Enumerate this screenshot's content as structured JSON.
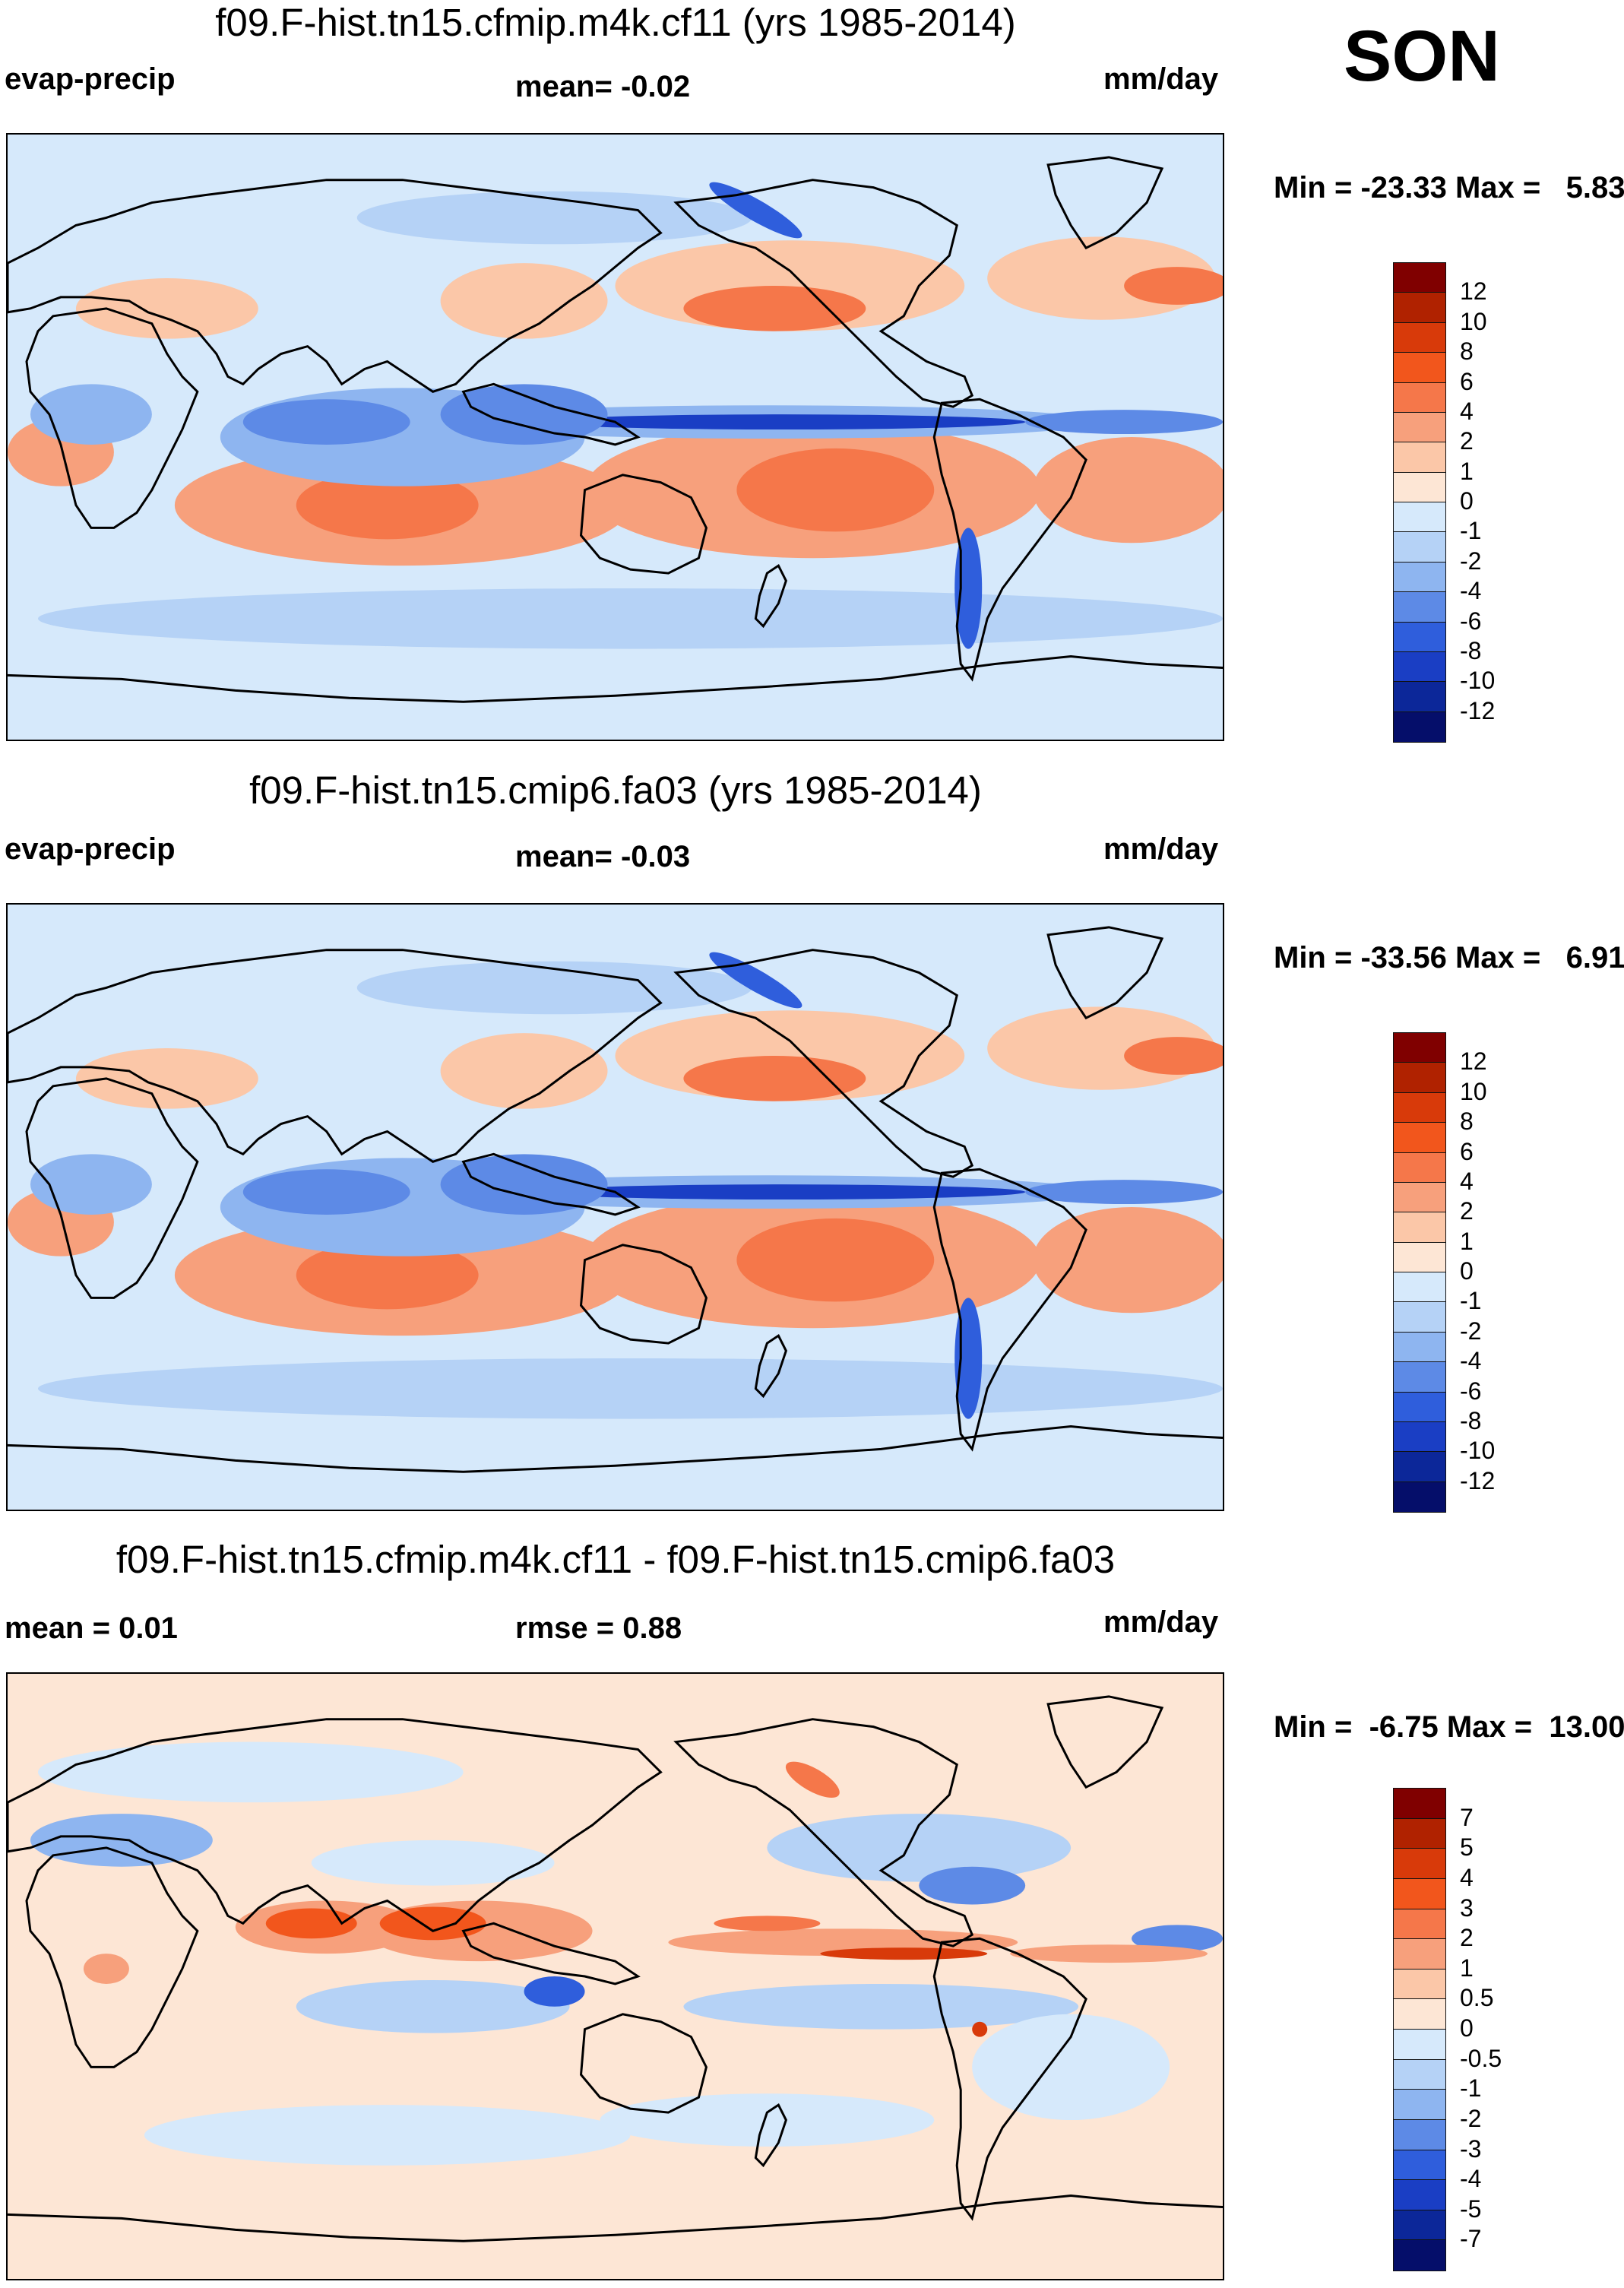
{
  "season": "SON",
  "panels": [
    {
      "title": "f09.F-hist.tn15.cfmip.m4k.cf11 (yrs 1985-2014)",
      "left_label": "evap-precip",
      "center_label": "mean=  -0.02",
      "right_label": "mm/day",
      "minmax": "Min = -23.33 Max =   5.83",
      "colorbar": {
        "labels": [
          "12",
          "10",
          "8",
          "6",
          "4",
          "2",
          "1",
          "0",
          "-1",
          "-2",
          "-4",
          "-6",
          "-8",
          "-10",
          "-12"
        ],
        "colors": [
          "#800000",
          "#b02200",
          "#d83a0a",
          "#f2561c",
          "#f5774a",
          "#f7a07c",
          "#fbc7a8",
          "#fde6d5",
          "#d6e9fb",
          "#b5d2f6",
          "#8eb5f0",
          "#5d8ae6",
          "#2f5edc",
          "#1a3ec4",
          "#0c2799",
          "#050e6a"
        ]
      },
      "map_type": "absolute"
    },
    {
      "title": "f09.F-hist.tn15.cmip6.fa03 (yrs 1985-2014)",
      "left_label": "evap-precip",
      "center_label": "mean=  -0.03",
      "right_label": "mm/day",
      "minmax": "Min = -33.56 Max =   6.91",
      "colorbar": {
        "labels": [
          "12",
          "10",
          "8",
          "6",
          "4",
          "2",
          "1",
          "0",
          "-1",
          "-2",
          "-4",
          "-6",
          "-8",
          "-10",
          "-12"
        ],
        "colors": [
          "#800000",
          "#b02200",
          "#d83a0a",
          "#f2561c",
          "#f5774a",
          "#f7a07c",
          "#fbc7a8",
          "#fde6d5",
          "#d6e9fb",
          "#b5d2f6",
          "#8eb5f0",
          "#5d8ae6",
          "#2f5edc",
          "#1a3ec4",
          "#0c2799",
          "#050e6a"
        ]
      },
      "map_type": "absolute"
    },
    {
      "title": "f09.F-hist.tn15.cfmip.m4k.cf11 - f09.F-hist.tn15.cmip6.fa03",
      "left_label": "mean =   0.01",
      "center_label": "rmse =   0.88",
      "right_label": "mm/day",
      "minmax": "Min =  -6.75 Max =  13.00",
      "colorbar": {
        "labels": [
          "7",
          "5",
          "4",
          "3",
          "2",
          "1",
          "0.5",
          "0",
          "-0.5",
          "-1",
          "-2",
          "-3",
          "-4",
          "-5",
          "-7"
        ],
        "colors": [
          "#800000",
          "#b02200",
          "#d83a0a",
          "#f2561c",
          "#f5774a",
          "#f7a07c",
          "#fbc7a8",
          "#fde6d5",
          "#d6e9fb",
          "#b5d2f6",
          "#8eb5f0",
          "#5d8ae6",
          "#2f5edc",
          "#1a3ec4",
          "#0c2799",
          "#050e6a"
        ]
      },
      "map_type": "difference"
    }
  ],
  "colors": {
    "land_outline": "#000000",
    "weak_negative": "#d6e9fb",
    "weak_positive": "#fde6d5"
  }
}
